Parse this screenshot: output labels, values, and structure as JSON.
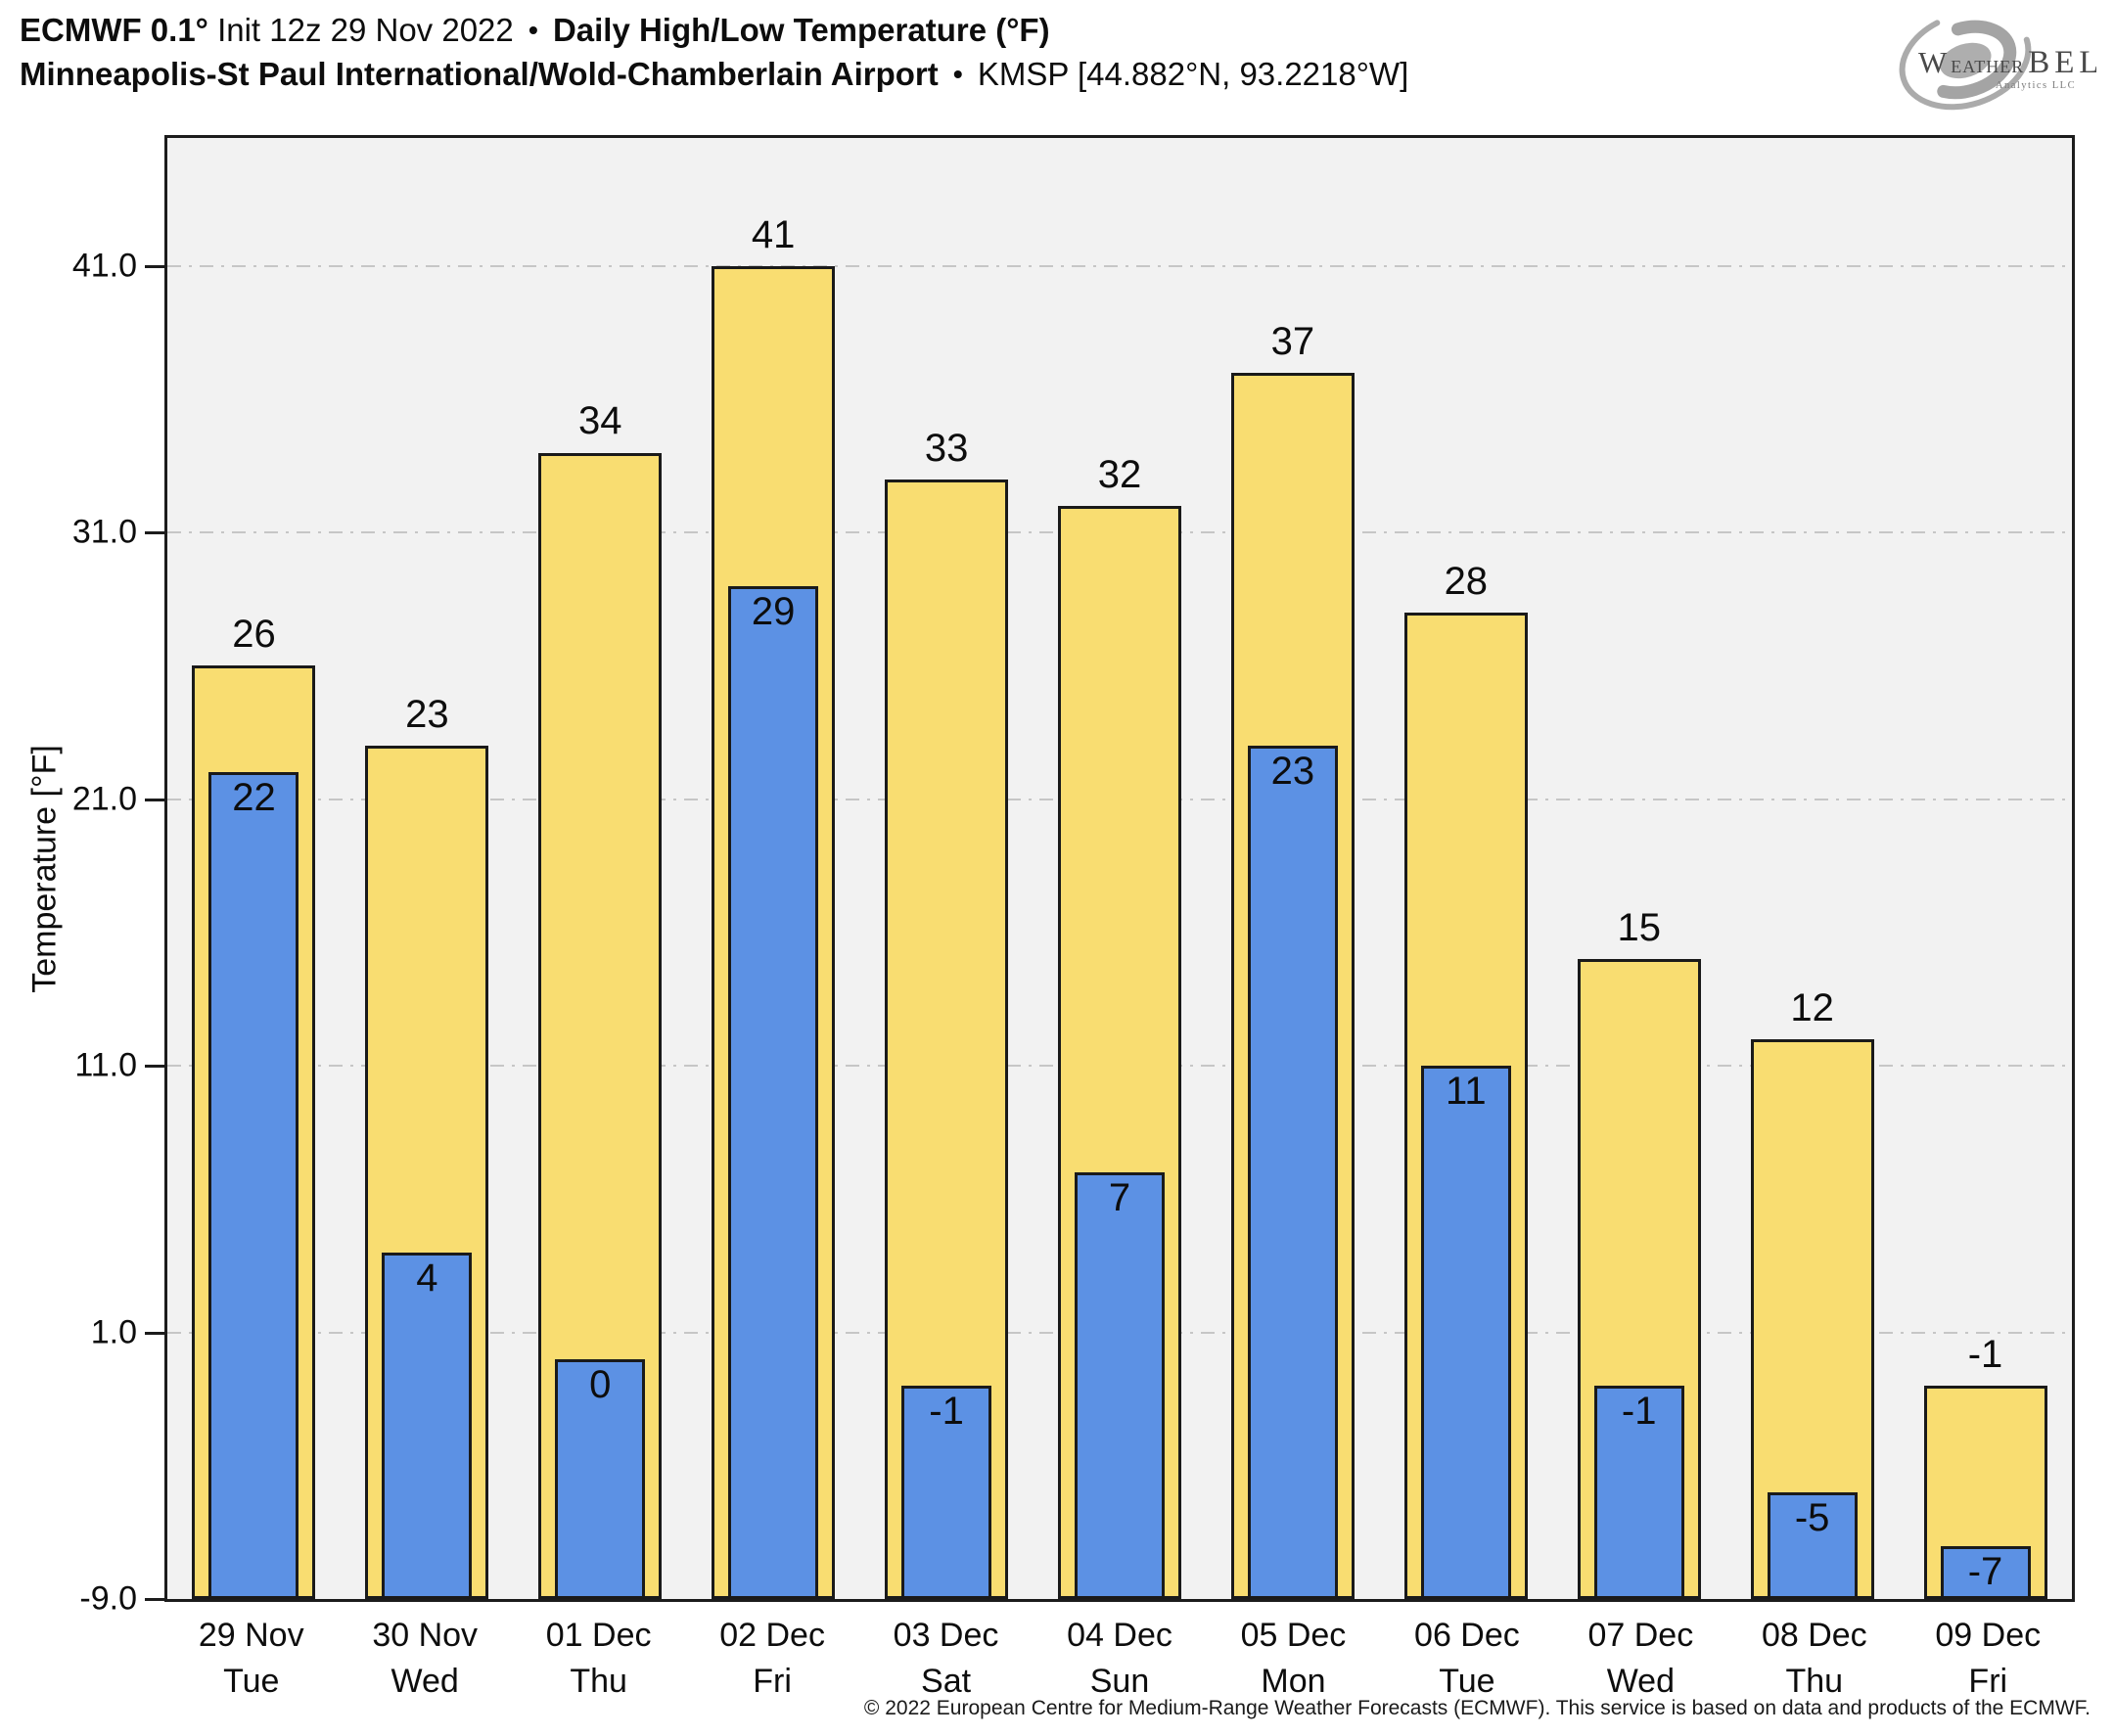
{
  "header": {
    "line1": {
      "bold1": "ECMWF 0.1°",
      "regular": "Init 12z 29 Nov 2022",
      "bullet": "•",
      "bold2": "Daily High/Low Temperature (°F)"
    },
    "line2": {
      "bold": "Minneapolis-St Paul International/Wold-Chamberlain Airport",
      "bullet": "•",
      "regular": "KMSP [44.882°N, 93.2218°W]"
    }
  },
  "logo": {
    "part_w": "W",
    "part_eather": "EATHER",
    "part_bell": "BELL",
    "tagline": "Analytics LLC"
  },
  "chart_data": {
    "type": "bar",
    "title": "ECMWF 0.1° Init 12z 29 Nov 2022 • Daily High/Low Temperature (°F)",
    "subtitle": "Minneapolis-St Paul International/Wold-Chamberlain Airport • KMSP [44.882°N, 93.2218°W]",
    "ylabel": "Temperature [°F]",
    "ylim": [
      -9,
      45.8
    ],
    "grid": "horizontal dash-dot gridlines at labeled ticks",
    "legend_position": "none",
    "plot_background": "#F2F2F2",
    "yticks": [
      {
        "label": "41.0",
        "value": 41
      },
      {
        "label": "31.0",
        "value": 31
      },
      {
        "label": "21.0",
        "value": 21
      },
      {
        "label": "11.0",
        "value": 11
      },
      {
        "label": "1.0",
        "value": 1
      },
      {
        "label": "-9.0",
        "value": -9
      }
    ],
    "categories": [
      {
        "date": "29 Nov",
        "day": "Tue"
      },
      {
        "date": "30 Nov",
        "day": "Wed"
      },
      {
        "date": "01 Dec",
        "day": "Thu"
      },
      {
        "date": "02 Dec",
        "day": "Fri"
      },
      {
        "date": "03 Dec",
        "day": "Sat"
      },
      {
        "date": "04 Dec",
        "day": "Sun"
      },
      {
        "date": "05 Dec",
        "day": "Mon"
      },
      {
        "date": "06 Dec",
        "day": "Tue"
      },
      {
        "date": "07 Dec",
        "day": "Wed"
      },
      {
        "date": "08 Dec",
        "day": "Thu"
      },
      {
        "date": "09 Dec",
        "day": "Fri"
      }
    ],
    "series": [
      {
        "name": "Daily High",
        "color": "#F9DD71",
        "values": [
          26,
          23,
          34,
          41,
          33,
          32,
          37,
          28,
          15,
          12,
          -1
        ]
      },
      {
        "name": "Daily Low",
        "color": "#5C91E4",
        "values": [
          22,
          4,
          0,
          29,
          -1,
          7,
          23,
          11,
          -1,
          -5,
          -7
        ]
      }
    ]
  },
  "footer": {
    "copyright": "© 2022 European Centre for Medium-Range Weather Forecasts (ECMWF). This service is based on data and products of the ECMWF."
  },
  "colors": {
    "high_fill": "#F9DD71",
    "low_fill": "#5C91E4",
    "bar_border": "#1A1A1A",
    "plot_bg": "#F2F2F2",
    "gridline": "#C6C6C6"
  }
}
